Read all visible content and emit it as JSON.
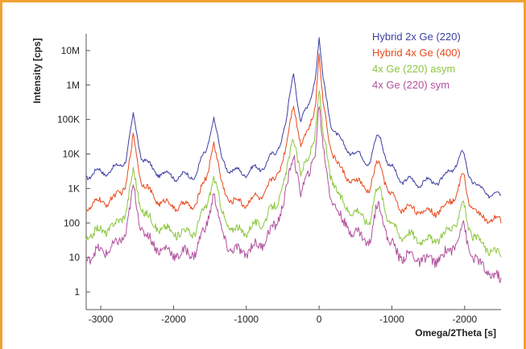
{
  "chart_data": {
    "type": "line",
    "title": "",
    "xlabel": "Omega/2Theta [s]",
    "ylabel": "Intensity [cps]",
    "y_scale": "log",
    "ylim": [
      1,
      100000000
    ],
    "xlim": [
      -3200,
      2500
    ],
    "x_direction": "right-to-left for positive values (printed ticks: -3000, -2000, -1000, 0, -1000, -2000)",
    "x_ticks": [
      {
        "value": -3000,
        "label": "-3000"
      },
      {
        "value": -2000,
        "label": "-2000"
      },
      {
        "value": -1000,
        "label": "-1000"
      },
      {
        "value": 0,
        "label": "0"
      },
      {
        "value": 1000,
        "label": "-1000"
      },
      {
        "value": 2000,
        "label": "-2000"
      }
    ],
    "y_ticks": [
      {
        "value": 1,
        "label": "1"
      },
      {
        "value": 10,
        "label": "10"
      },
      {
        "value": 100,
        "label": "100"
      },
      {
        "value": 1000,
        "label": "1K"
      },
      {
        "value": 10000,
        "label": "10K"
      },
      {
        "value": 100000,
        "label": "100K"
      },
      {
        "value": 1000000,
        "label": "1M"
      },
      {
        "value": 10000000,
        "label": "10M"
      }
    ],
    "grid": false,
    "legend_position": "top-right",
    "series": [
      {
        "name": "Hybrid 2x Ge (220)",
        "color": "#3b3fa0",
        "x": [
          -3200,
          -3000,
          -2800,
          -2650,
          -2550,
          -2450,
          -2300,
          -2100,
          -1900,
          -1700,
          -1550,
          -1450,
          -1350,
          -1200,
          -1000,
          -800,
          -600,
          -450,
          -350,
          -300,
          -250,
          -150,
          -50,
          0,
          50,
          150,
          300,
          500,
          700,
          800,
          850,
          950,
          1100,
          1300,
          1500,
          1700,
          1900,
          1980,
          2050,
          2200,
          2400,
          2500
        ],
        "y": [
          2500,
          3000,
          3500,
          8000,
          120000,
          10000,
          3500,
          2500,
          2200,
          2500,
          12000,
          130000,
          8000,
          3000,
          3000,
          4000,
          10000,
          80000,
          2500000,
          400000,
          100000,
          200000,
          2000000,
          25000000,
          1500000,
          100000,
          20000,
          10000,
          6000,
          30000,
          30000,
          5000,
          2000,
          1500,
          1500,
          1800,
          6000,
          10000,
          3000,
          900,
          700,
          600
        ]
      },
      {
        "name": "Hybrid 4x Ge (400)",
        "color": "#e8491d",
        "x": [
          -3200,
          -3000,
          -2800,
          -2650,
          -2550,
          -2450,
          -2300,
          -2100,
          -1900,
          -1700,
          -1550,
          -1450,
          -1350,
          -1200,
          -1000,
          -800,
          -600,
          -450,
          -350,
          -300,
          -250,
          -150,
          -50,
          0,
          50,
          150,
          300,
          500,
          700,
          800,
          850,
          950,
          1100,
          1300,
          1500,
          1700,
          1900,
          1980,
          2050,
          2200,
          2400,
          2500
        ],
        "y": [
          300,
          400,
          500,
          1500,
          30000,
          2000,
          600,
          350,
          300,
          350,
          2000,
          25000,
          1500,
          400,
          400,
          600,
          2000,
          15000,
          300000,
          80000,
          20000,
          40000,
          300000,
          9000000,
          300000,
          20000,
          3000,
          1500,
          1000,
          5000,
          5000,
          800,
          300,
          250,
          200,
          250,
          800,
          2500,
          500,
          150,
          120,
          110
        ]
      },
      {
        "name": "4x Ge (220) asym",
        "color": "#8cc63f",
        "x": [
          -3200,
          -3000,
          -2800,
          -2650,
          -2550,
          -2450,
          -2300,
          -2100,
          -1900,
          -1700,
          -1550,
          -1450,
          -1350,
          -1200,
          -1000,
          -800,
          -600,
          -450,
          -350,
          -300,
          -250,
          -150,
          -50,
          0,
          50,
          150,
          300,
          500,
          700,
          800,
          850,
          950,
          1100,
          1300,
          1500,
          1700,
          1900,
          1980,
          2050,
          2200,
          2400,
          2500
        ],
        "y": [
          40,
          60,
          80,
          250,
          3000,
          300,
          100,
          60,
          50,
          60,
          300,
          2500,
          250,
          60,
          60,
          100,
          300,
          2500,
          30000,
          10000,
          3000,
          6000,
          50000,
          800000,
          40000,
          3000,
          400,
          200,
          120,
          1000,
          1000,
          120,
          50,
          40,
          30,
          40,
          120,
          400,
          80,
          25,
          15,
          10
        ]
      },
      {
        "name": "4x Ge (220) sym",
        "color": "#b2509e",
        "x": [
          -3200,
          -3000,
          -2800,
          -2650,
          -2550,
          -2450,
          -2300,
          -2100,
          -1900,
          -1700,
          -1550,
          -1450,
          -1350,
          -1200,
          -1000,
          -800,
          -600,
          -450,
          -350,
          -300,
          -250,
          -150,
          -50,
          0,
          50,
          150,
          300,
          500,
          700,
          800,
          850,
          950,
          1100,
          1300,
          1500,
          1700,
          1900,
          1980,
          2050,
          2200,
          2400,
          2500
        ],
        "y": [
          10,
          15,
          20,
          60,
          1000,
          80,
          25,
          15,
          12,
          15,
          80,
          800,
          60,
          15,
          15,
          25,
          80,
          800,
          10000,
          3000,
          800,
          2000,
          15000,
          300000,
          15000,
          800,
          120,
          50,
          30,
          300,
          300,
          30,
          12,
          10,
          8,
          10,
          30,
          100,
          20,
          6,
          3,
          2
        ]
      }
    ]
  }
}
